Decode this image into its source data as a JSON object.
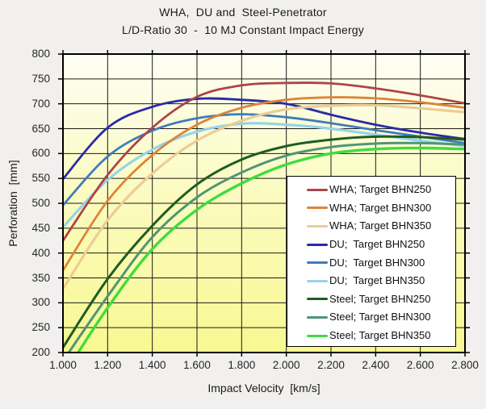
{
  "page": {
    "background": "#f1f0ee"
  },
  "chart_data": {
    "type": "line",
    "title_lines": [
      "WHA,  DU and  Steel-Penetrator",
      "L/D-Ratio 30  -  10 MJ Constant Impact Energy"
    ],
    "xlabel": "Impact Velocity  [km/s]",
    "ylabel": "Perforation  [mm]",
    "xlim": [
      1.0,
      2.8
    ],
    "ylim": [
      200,
      800
    ],
    "grid": true,
    "x": [
      1.0,
      1.2,
      1.4,
      1.6,
      1.8,
      2.0,
      2.2,
      2.4,
      2.6,
      2.8
    ],
    "x_tick_labels": [
      "1.000",
      "1.200",
      "1.400",
      "1.600",
      "1.800",
      "2.000",
      "2.200",
      "2.400",
      "2.600",
      "2.800"
    ],
    "y_ticks": [
      200,
      250,
      300,
      350,
      400,
      450,
      500,
      550,
      600,
      650,
      700,
      750,
      800
    ],
    "axis_color": "#000000",
    "gridline_color": "#1a1a1a",
    "plot_background": {
      "top": "#fefef4",
      "middle": "#fbfbc2",
      "bottom": "#f8f892"
    },
    "legend": {
      "position": "inside-bottom-right",
      "background": "#ffffff",
      "border_color": "#000000"
    },
    "series": [
      {
        "name": "WHA; Target BHN250",
        "color": "#ae4448",
        "line_width": 2.8,
        "values": [
          425,
          557,
          652,
          714,
          737,
          742,
          741,
          731,
          717,
          701
        ]
      },
      {
        "name": "WHA; Target BHN300",
        "color": "#dd8439",
        "line_width": 2.8,
        "values": [
          365,
          505,
          597,
          658,
          692,
          708,
          713,
          711,
          703,
          692
        ]
      },
      {
        "name": "WHA; Target BHN350",
        "color": "#ebcd95",
        "line_width": 3.2,
        "values": [
          328,
          466,
          560,
          626,
          666,
          689,
          696,
          697,
          691,
          683
        ]
      },
      {
        "name": "DU;  Target BHN250",
        "color": "#2a2aa8",
        "line_width": 2.8,
        "values": [
          549,
          652,
          694,
          710,
          708,
          700,
          678,
          658,
          642,
          629
        ]
      },
      {
        "name": "DU;  Target BHN300",
        "color": "#3e7cbb",
        "line_width": 2.8,
        "values": [
          496,
          594,
          646,
          671,
          679,
          673,
          661,
          647,
          634,
          621
        ]
      },
      {
        "name": "DU;  Target BHN350",
        "color": "#97d3ea",
        "line_width": 3.2,
        "values": [
          452,
          547,
          608,
          644,
          660,
          658,
          650,
          638,
          626,
          615
        ]
      },
      {
        "name": "Steel; Target BHN250",
        "color": "#1f5c21",
        "line_width": 3.0,
        "values": [
          210,
          348,
          455,
          538,
          588,
          615,
          628,
          634,
          633,
          628
        ]
      },
      {
        "name": "Steel; Target BHN300",
        "color": "#4f9674",
        "line_width": 3.0,
        "values": [
          183,
          313,
          432,
          512,
          562,
          596,
          613,
          620,
          621,
          618
        ]
      },
      {
        "name": "Steel; Target BHN350",
        "color": "#3fdc3f",
        "line_width": 3.4,
        "values": [
          152,
          290,
          408,
          487,
          540,
          578,
          600,
          609,
          611,
          609
        ]
      }
    ]
  }
}
